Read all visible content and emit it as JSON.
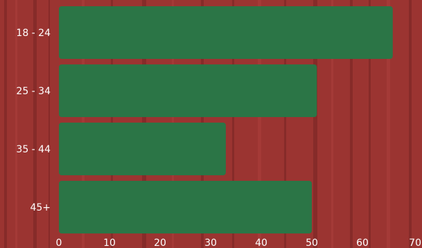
{
  "colors": {
    "background": "#9b3431",
    "bar": "#2b7546",
    "text": "#ffffff"
  },
  "chart_data": {
    "type": "bar",
    "orientation": "horizontal",
    "categories": [
      "18 - 24",
      "25 - 34",
      "35 - 44",
      "45+"
    ],
    "values": [
      66,
      51,
      33,
      50
    ],
    "xlim": [
      0,
      70
    ],
    "xticks": [
      "0",
      "10",
      "20",
      "30",
      "40",
      "50",
      "60",
      "70"
    ],
    "title": "",
    "xlabel": "",
    "ylabel": "",
    "grid": false,
    "legend": "none"
  }
}
